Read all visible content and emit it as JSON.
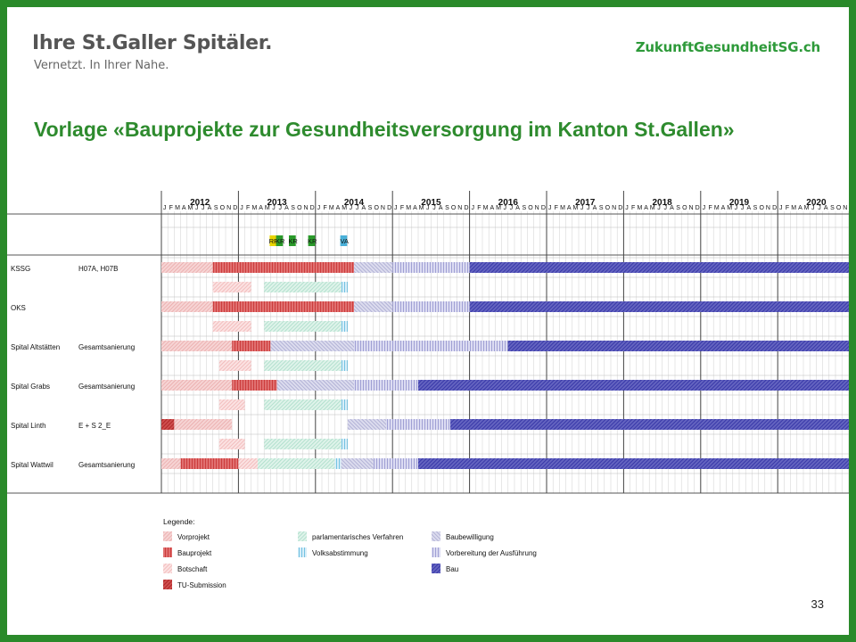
{
  "header": {
    "brand": "Ihre St.Galler Spitäler.",
    "tagline": "Vernetzt. In Ihrer Nahe.",
    "website": "ZukunftGesundheitSG.ch"
  },
  "title": "Vorlage «Bauprojekte zur Gesundheitsversorgung im Kanton St.Gallen»",
  "page_number": "33",
  "colors": {
    "frame": "#2a8a2a",
    "title": "#2e8b2e",
    "vorprojekt": "#e8a4a4",
    "bauprojekt": "#c83030",
    "botschaft": "#f0b4b4",
    "tu_submission": "#b02828",
    "parlament": "#a8dcc8",
    "volksabstimmung": "#4ab0d8",
    "baubewilligung": "#a8a8d0",
    "vorbereitung": "#7878c0",
    "bau": "#3838a8"
  },
  "chart_data": {
    "type": "gantt",
    "years": [
      "2012",
      "2013",
      "2014",
      "2015",
      "2016",
      "2017",
      "2018",
      "2019",
      "2020"
    ],
    "months": [
      "J",
      "F",
      "M",
      "A",
      "M",
      "J",
      "J",
      "A",
      "S",
      "O",
      "N",
      "D"
    ],
    "milestones": [
      {
        "label": "RR",
        "month": 17,
        "color": "#e8d400"
      },
      {
        "label": "KR",
        "month": 18,
        "color": "#2a9a2a"
      },
      {
        "label": "KR",
        "month": 20,
        "color": "#2a9a2a"
      },
      {
        "label": "KR",
        "month": 23,
        "color": "#2a9a2a"
      },
      {
        "label": "VA",
        "month": 28,
        "color": "#4ab0d8"
      }
    ],
    "projects": [
      {
        "name": "KSSG",
        "desc": "H07A, H07B",
        "rows": [
          [
            [
              "vorprojekt",
              0,
              8
            ],
            [
              "bauprojekt",
              8,
              30
            ],
            [
              "baubewilligung",
              30,
              36
            ],
            [
              "vorbereitung",
              36,
              48
            ],
            [
              "bau",
              48,
              108
            ]
          ],
          [
            [
              "botschaft",
              8,
              14
            ],
            [
              "parlament",
              16,
              28
            ],
            [
              "volksabstimmung",
              28,
              29
            ]
          ]
        ]
      },
      {
        "name": "OKS",
        "desc": "",
        "rows": [
          [
            [
              "vorprojekt",
              0,
              8
            ],
            [
              "bauprojekt",
              8,
              30
            ],
            [
              "baubewilligung",
              30,
              36
            ],
            [
              "vorbereitung",
              36,
              48
            ],
            [
              "bau",
              48,
              108
            ]
          ],
          [
            [
              "botschaft",
              8,
              14
            ],
            [
              "parlament",
              16,
              28
            ],
            [
              "volksabstimmung",
              28,
              29
            ]
          ]
        ]
      },
      {
        "name": "Spital Altstätten",
        "desc": "Gesamtsanierung",
        "rows": [
          [
            [
              "vorprojekt",
              0,
              11
            ],
            [
              "bauprojekt",
              11,
              17
            ],
            [
              "baubewilligung",
              17,
              30
            ],
            [
              "vorbereitung",
              30,
              54
            ],
            [
              "bau",
              54,
              108
            ]
          ],
          [
            [
              "botschaft",
              9,
              14
            ],
            [
              "parlament",
              16,
              28
            ],
            [
              "volksabstimmung",
              28,
              29
            ]
          ]
        ]
      },
      {
        "name": "Spital Grabs",
        "desc": "Gesamtsanierung",
        "rows": [
          [
            [
              "vorprojekt",
              0,
              11
            ],
            [
              "bauprojekt",
              11,
              18
            ],
            [
              "baubewilligung",
              18,
              30
            ],
            [
              "vorbereitung",
              30,
              40
            ],
            [
              "bau",
              40,
              108
            ]
          ],
          [
            [
              "botschaft",
              9,
              13
            ],
            [
              "parlament",
              16,
              28
            ],
            [
              "volksabstimmung",
              28,
              29
            ]
          ]
        ]
      },
      {
        "name": "Spital Linth",
        "desc": "E + S 2_E",
        "rows": [
          [
            [
              "tu_submission",
              0,
              2
            ],
            [
              "vorprojekt",
              2,
              11
            ],
            [
              "baubewilligung",
              29,
              35
            ],
            [
              "vorbereitung",
              35,
              45
            ],
            [
              "bau",
              45,
              108
            ]
          ],
          [
            [
              "botschaft",
              9,
              13
            ],
            [
              "parlament",
              16,
              28
            ],
            [
              "volksabstimmung",
              28,
              29
            ]
          ]
        ]
      },
      {
        "name": "Spital Wattwil",
        "desc": "Gesamtsanierung",
        "rows": [
          [
            [
              "vorprojekt",
              0,
              3
            ],
            [
              "bauprojekt",
              3,
              12
            ],
            [
              "botschaft",
              12,
              15
            ],
            [
              "parlament",
              15,
              27
            ],
            [
              "volksabstimmung",
              27,
              28
            ],
            [
              "baubewilligung",
              28,
              33
            ],
            [
              "vorbereitung",
              33,
              40
            ],
            [
              "bau",
              40,
              108
            ]
          ],
          []
        ]
      }
    ],
    "legend": {
      "title": "Legende:",
      "items": [
        {
          "key": "vorprojekt",
          "label": "Vorprojekt"
        },
        {
          "key": "bauprojekt",
          "label": "Bauprojekt"
        },
        {
          "key": "botschaft",
          "label": "Botschaft"
        },
        {
          "key": "tu_submission",
          "label": "TU-Submission"
        },
        {
          "key": "parlament",
          "label": "parlamentarisches Verfahren"
        },
        {
          "key": "volksabstimmung",
          "label": "Volksabstimmung"
        },
        {
          "key": "baubewilligung",
          "label": "Baubewilligung"
        },
        {
          "key": "vorbereitung",
          "label": "Vorbereitung der Ausführung"
        },
        {
          "key": "bau",
          "label": "Bau"
        }
      ]
    }
  }
}
